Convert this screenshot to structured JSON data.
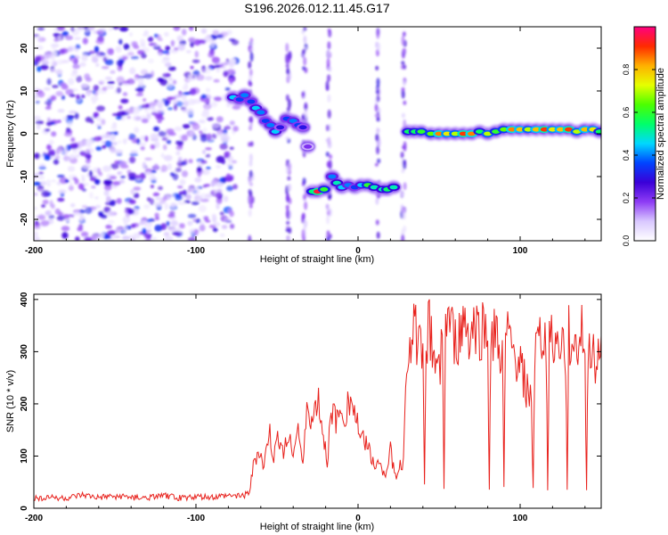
{
  "title": "S196.2026.012.11.45.G17",
  "colors": {
    "trace": "#e8211c",
    "frame": "#000000",
    "colormap": [
      "#ffffff",
      "#d9c8ff",
      "#8e3cf5",
      "#3a00d8",
      "#0044ff",
      "#00d8ff",
      "#00ff6a",
      "#4cff00",
      "#e6ff00",
      "#ffb000",
      "#ff2a00",
      "#ff0080"
    ]
  },
  "chart_data": [
    {
      "type": "heatmap",
      "xlabel": "Height of straight line (km)",
      "ylabel": "Frequency (Hz)",
      "xlim": [
        -200,
        150
      ],
      "ylim": [
        -25,
        25
      ],
      "xticks": [
        -200,
        -100,
        0,
        100
      ],
      "xtick_labels": [
        "-200",
        "-100",
        "0",
        "100"
      ],
      "yticks": [
        -20,
        -10,
        0,
        10,
        20
      ],
      "ytick_labels": [
        "-20",
        "-10",
        "0",
        "10",
        "20"
      ],
      "colorbar": {
        "label": "Normalized spectral amplitude",
        "range": [
          0,
          1
        ],
        "ticks": [
          0.0,
          0.2,
          0.4,
          0.6,
          0.8
        ],
        "tick_labels": [
          "0.0",
          "0.2",
          "0.4",
          "0.6",
          "0.8"
        ]
      },
      "noise_region_x": [
        -200,
        -75
      ],
      "gap_columns_x": [
        -66,
        -43,
        -33,
        -18,
        12,
        28
      ],
      "ridge": [
        {
          "x": -77,
          "f": 8.5,
          "amp": 0.45
        },
        {
          "x": -73,
          "f": 8.0,
          "amp": 0.35
        },
        {
          "x": -70,
          "f": 9.0,
          "amp": 0.4
        },
        {
          "x": -66,
          "f": 7.5,
          "amp": 0.35
        },
        {
          "x": -63,
          "f": 6.0,
          "amp": 0.45
        },
        {
          "x": -60,
          "f": 5.0,
          "amp": 0.4
        },
        {
          "x": -57,
          "f": 3.0,
          "amp": 0.35
        },
        {
          "x": -54,
          "f": 2.0,
          "amp": 0.4
        },
        {
          "x": -51,
          "f": 0.5,
          "amp": 0.45
        },
        {
          "x": -48,
          "f": 1.5,
          "amp": 0.3
        },
        {
          "x": -44,
          "f": 3.5,
          "amp": 0.35
        },
        {
          "x": -40,
          "f": 3.0,
          "amp": 0.4
        },
        {
          "x": -37,
          "f": 2.0,
          "amp": 0.35
        },
        {
          "x": -34,
          "f": 1.5,
          "amp": 0.3
        },
        {
          "x": -31,
          "f": -3.0,
          "amp": 0.2
        },
        {
          "x": -28,
          "f": -13.5,
          "amp": 0.55
        },
        {
          "x": -25,
          "f": -13.5,
          "amp": 0.95
        },
        {
          "x": -21,
          "f": -13.0,
          "amp": 0.6
        },
        {
          "x": -16,
          "f": -10.0,
          "amp": 0.4
        },
        {
          "x": -13,
          "f": -11.5,
          "amp": 0.5
        },
        {
          "x": -10,
          "f": -12.5,
          "amp": 0.45
        },
        {
          "x": -6,
          "f": -12.0,
          "amp": 0.4
        },
        {
          "x": -2,
          "f": -12.5,
          "amp": 0.35
        },
        {
          "x": 2,
          "f": -12.0,
          "amp": 0.45
        },
        {
          "x": 6,
          "f": -12.0,
          "amp": 0.6
        },
        {
          "x": 10,
          "f": -12.5,
          "amp": 0.5
        },
        {
          "x": 15,
          "f": -13.0,
          "amp": 0.5
        },
        {
          "x": 18,
          "f": -13.0,
          "amp": 0.55
        },
        {
          "x": 22,
          "f": -12.5,
          "amp": 0.5
        },
        {
          "x": 31,
          "f": 0.5,
          "amp": 0.55
        },
        {
          "x": 35,
          "f": 0.5,
          "amp": 0.55
        },
        {
          "x": 39,
          "f": 0.5,
          "amp": 0.6
        },
        {
          "x": 45,
          "f": 0.0,
          "amp": 0.65
        },
        {
          "x": 50,
          "f": 0.0,
          "amp": 0.85
        },
        {
          "x": 55,
          "f": 0.0,
          "amp": 0.75
        },
        {
          "x": 60,
          "f": 0.0,
          "amp": 0.7
        },
        {
          "x": 65,
          "f": 0.0,
          "amp": 0.9
        },
        {
          "x": 70,
          "f": 0.0,
          "amp": 0.85
        },
        {
          "x": 75,
          "f": 0.5,
          "amp": 0.55
        },
        {
          "x": 80,
          "f": 0.0,
          "amp": 0.7
        },
        {
          "x": 85,
          "f": 0.5,
          "amp": 0.6
        },
        {
          "x": 90,
          "f": 1.0,
          "amp": 0.65
        },
        {
          "x": 95,
          "f": 1.0,
          "amp": 0.85
        },
        {
          "x": 100,
          "f": 1.0,
          "amp": 0.8
        },
        {
          "x": 105,
          "f": 1.0,
          "amp": 0.7
        },
        {
          "x": 110,
          "f": 1.0,
          "amp": 0.8
        },
        {
          "x": 115,
          "f": 1.0,
          "amp": 0.9
        },
        {
          "x": 120,
          "f": 1.0,
          "amp": 0.75
        },
        {
          "x": 125,
          "f": 1.0,
          "amp": 0.8
        },
        {
          "x": 130,
          "f": 1.0,
          "amp": 0.9
        },
        {
          "x": 135,
          "f": 0.5,
          "amp": 0.7
        },
        {
          "x": 140,
          "f": 1.0,
          "amp": 0.8
        },
        {
          "x": 145,
          "f": 1.0,
          "amp": 0.75
        },
        {
          "x": 149,
          "f": 0.5,
          "amp": 0.55
        }
      ]
    },
    {
      "type": "line",
      "xlabel": "Height of straight line (km)",
      "ylabel": "SNR (10 * v/v)",
      "xlim": [
        -200,
        150
      ],
      "ylim": [
        0,
        410
      ],
      "xticks": [
        -200,
        -100,
        0,
        100
      ],
      "xtick_labels": [
        "-200",
        "-100",
        "0",
        "100"
      ],
      "yticks": [
        0,
        100,
        200,
        300,
        400
      ],
      "ytick_labels": [
        "0",
        "100",
        "200",
        "300",
        "400"
      ],
      "series": [
        {
          "x": [
            -200,
            -190,
            -180,
            -170,
            -160,
            -150,
            -140,
            -130,
            -120,
            -110,
            -100,
            -90,
            -80,
            -70,
            -67,
            -64,
            -61,
            -58,
            -55,
            -52,
            -49,
            -46,
            -43,
            -40,
            -37,
            -34,
            -31,
            -28,
            -25,
            -22,
            -19,
            -16,
            -13,
            -10,
            -7,
            -4,
            -1,
            2,
            5,
            8,
            11,
            14,
            17,
            20,
            23,
            26,
            28,
            30,
            32,
            35,
            38,
            40,
            41,
            42,
            44,
            47,
            50,
            52,
            53,
            54,
            56,
            58,
            60,
            63,
            66,
            69,
            72,
            75,
            78,
            80,
            81,
            82,
            84,
            87,
            89,
            90,
            91,
            93,
            96,
            99,
            102,
            105,
            107,
            108,
            109,
            111,
            114,
            116,
            117,
            118,
            120,
            123,
            126,
            128,
            129,
            130,
            132,
            135,
            138,
            140,
            141,
            142,
            144,
            147,
            150
          ],
          "y": [
            18,
            22,
            19,
            25,
            20,
            23,
            21,
            19,
            24,
            20,
            22,
            21,
            24,
            25,
            30,
            90,
            110,
            75,
            150,
            95,
            140,
            105,
            130,
            120,
            155,
            80,
            200,
            160,
            215,
            150,
            90,
            195,
            160,
            190,
            185,
            215,
            170,
            125,
            135,
            95,
            90,
            80,
            70,
            110,
            60,
            80,
            90,
            300,
            330,
            350,
            310,
            280,
            40,
            330,
            350,
            300,
            270,
            320,
            40,
            345,
            360,
            330,
            310,
            330,
            360,
            320,
            350,
            330,
            345,
            310,
            40,
            330,
            350,
            300,
            290,
            40,
            320,
            320,
            290,
            280,
            255,
            220,
            200,
            40,
            290,
            310,
            330,
            310,
            40,
            330,
            340,
            300,
            320,
            280,
            40,
            330,
            320,
            300,
            340,
            290,
            40,
            320,
            310,
            280,
            330
          ]
        }
      ]
    }
  ]
}
